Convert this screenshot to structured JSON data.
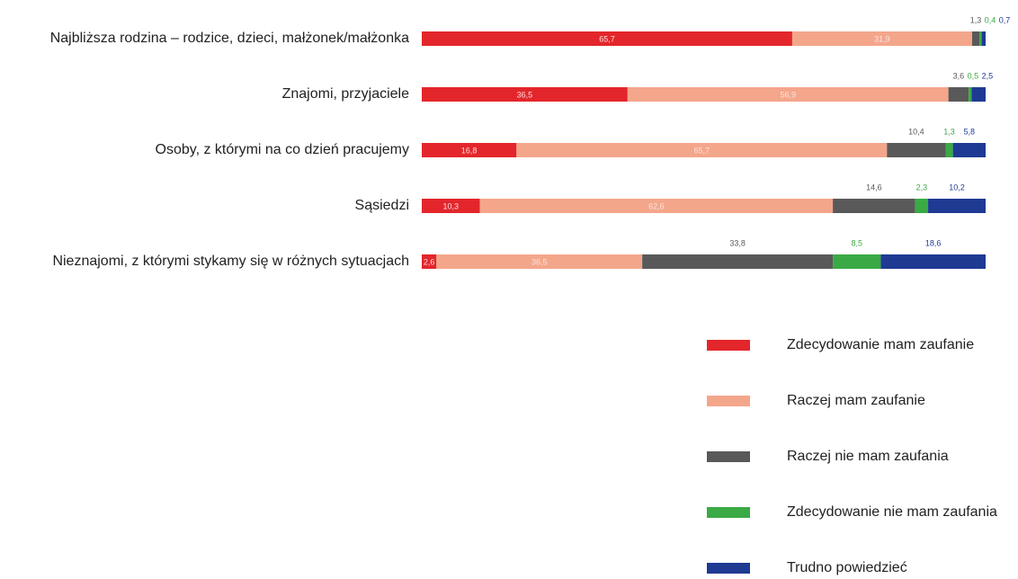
{
  "chart_data": {
    "type": "stacked-bar-horizontal",
    "categories": [
      "Najbliższa rodzina – rodzice, dzieci, małżonek/małżonka",
      "Znajomi, przyjaciele",
      "Osoby, z którymi na co dzień pracujemy",
      "Sąsiedzi",
      "Nieznajomi, z którymi stykamy się w różnych sytuacjach"
    ],
    "xlim": [
      0,
      100
    ],
    "series": [
      {
        "name": "Zdecydowanie mam zaufanie",
        "color": "#e3262b",
        "values": [
          65.7,
          36.5,
          16.8,
          10.3,
          2.6
        ],
        "value_labels": [
          "65,7",
          "36,5",
          "16,8",
          "10,3",
          "2,6"
        ]
      },
      {
        "name": "Raczej mam zaufanie",
        "color": "#f4a68b",
        "values": [
          31.9,
          56.9,
          65.7,
          62.6,
          36.5
        ],
        "value_labels": [
          "31,9",
          "56,9",
          "65,7",
          "62,6",
          "36,5"
        ]
      },
      {
        "name": "Raczej nie mam zaufania",
        "color": "#595959",
        "values": [
          1.3,
          3.6,
          10.4,
          14.6,
          33.8
        ],
        "value_labels": [
          "1,3",
          "3,6",
          "10,4",
          "14,6",
          "33,8"
        ]
      },
      {
        "name": "Zdecydowanie nie mam zaufania",
        "color": "#3aaa45",
        "values": [
          0.4,
          0.5,
          1.3,
          2.3,
          8.5
        ],
        "value_labels": [
          "0,4",
          "0,5",
          "1,3",
          "2,3",
          "8,5"
        ]
      },
      {
        "name": "Trudno powiedzieć",
        "color": "#1f3a93",
        "values": [
          0.7,
          2.5,
          5.8,
          10.2,
          18.6
        ],
        "value_labels": [
          "0,7",
          "2,5",
          "5,8",
          "10,2",
          "18,6"
        ]
      }
    ],
    "legend": "bottom-right"
  }
}
